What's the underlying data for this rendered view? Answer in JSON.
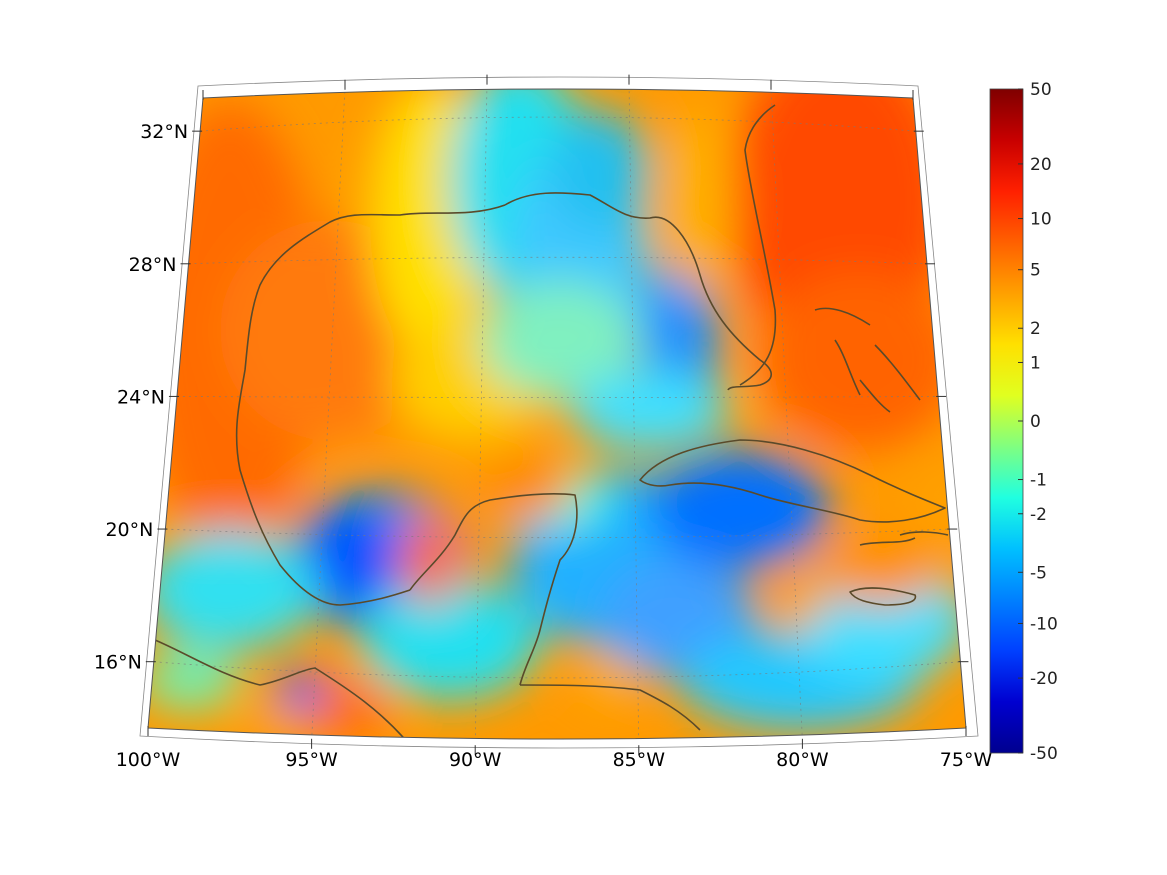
{
  "map": {
    "projection": "conic",
    "extent": {
      "lon_min": -100,
      "lon_max": -75,
      "lat_min": 14,
      "lat_max": 33
    },
    "grid": true,
    "land_outline_color": "#5a4a2a",
    "colormap": "jet"
  },
  "lat_ticks": [
    {
      "value": 32,
      "label": "32°N"
    },
    {
      "value": 28,
      "label": "28°N"
    },
    {
      "value": 24,
      "label": "24°N"
    },
    {
      "value": 20,
      "label": "20°N"
    },
    {
      "value": 16,
      "label": "16°N"
    }
  ],
  "lon_ticks": [
    {
      "value": -100,
      "label": "100°W"
    },
    {
      "value": -95,
      "label": "95°W"
    },
    {
      "value": -90,
      "label": "90°W"
    },
    {
      "value": -85,
      "label": "85°W"
    },
    {
      "value": -80,
      "label": "80°W"
    },
    {
      "value": -75,
      "label": "75°W"
    }
  ],
  "colorbar": {
    "position": "right",
    "scale": "symmetric-log",
    "labels": [
      "50",
      "20",
      "10",
      "5",
      "2",
      "1",
      "0",
      "-1",
      "-2",
      "-5",
      "-10",
      "-20",
      "-50"
    ],
    "colors": [
      "#7f0000",
      "#c80000",
      "#ff2000",
      "#ff6000",
      "#ffa000",
      "#ffe000",
      "#e0ff20",
      "#80ff80",
      "#20ffe0",
      "#00c0ff",
      "#0080ff",
      "#0040ff",
      "#0000d0",
      "#00008f"
    ]
  }
}
